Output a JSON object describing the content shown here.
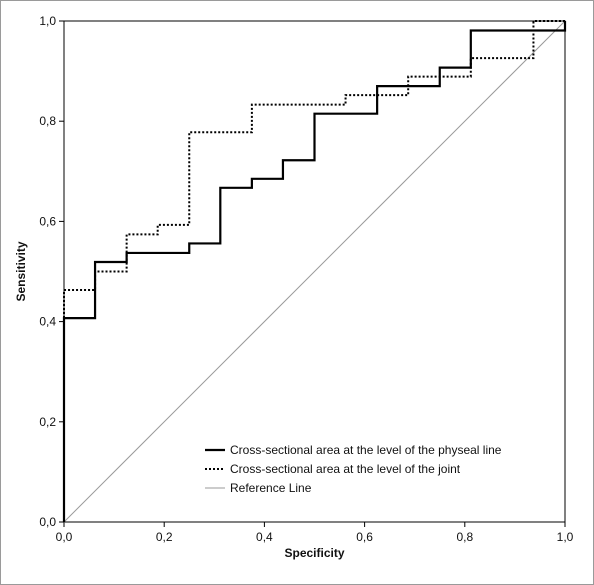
{
  "chart_data": {
    "type": "line",
    "xlabel": "Specificity",
    "ylabel": "Sensitivity",
    "xlim": [
      0,
      1
    ],
    "ylim": [
      0,
      1
    ],
    "xticks": [
      "0,0",
      "0,2",
      "0,4",
      "0,6",
      "0,8",
      "1,0"
    ],
    "yticks": [
      "0,0",
      "0,2",
      "0,4",
      "0,6",
      "0,8",
      "1,0"
    ],
    "grid": false,
    "legend_position": "bottom-right",
    "series": [
      {
        "name": "Cross-sectional area at the level of the physeal line",
        "style": "solid",
        "color": "#000000",
        "x": [
          0,
          0,
          0.062,
          0.062,
          0.125,
          0.125,
          0.25,
          0.25,
          0.312,
          0.312,
          0.375,
          0.375,
          0.437,
          0.437,
          0.5,
          0.5,
          0.625,
          0.625,
          0.75,
          0.75,
          0.812,
          0.812,
          1.0,
          1.0
        ],
        "y": [
          0,
          0.407,
          0.407,
          0.519,
          0.519,
          0.537,
          0.537,
          0.556,
          0.556,
          0.667,
          0.667,
          0.685,
          0.685,
          0.722,
          0.722,
          0.815,
          0.815,
          0.87,
          0.87,
          0.907,
          0.907,
          0.981,
          0.981,
          1.0
        ]
      },
      {
        "name": "Cross-sectional area at the level of the joint",
        "style": "dotted",
        "color": "#000000",
        "x": [
          0,
          0,
          0.062,
          0.062,
          0.125,
          0.125,
          0.187,
          0.187,
          0.25,
          0.25,
          0.375,
          0.375,
          0.562,
          0.562,
          0.687,
          0.687,
          0.812,
          0.812,
          0.937,
          0.937,
          1.0
        ],
        "y": [
          0,
          0.463,
          0.463,
          0.5,
          0.5,
          0.574,
          0.574,
          0.593,
          0.593,
          0.778,
          0.778,
          0.833,
          0.833,
          0.852,
          0.852,
          0.889,
          0.889,
          0.926,
          0.926,
          1.0,
          1.0
        ]
      },
      {
        "name": "Reference Line",
        "style": "reference",
        "color": "#9a9a9a",
        "x": [
          0,
          1
        ],
        "y": [
          0,
          1
        ]
      }
    ]
  }
}
